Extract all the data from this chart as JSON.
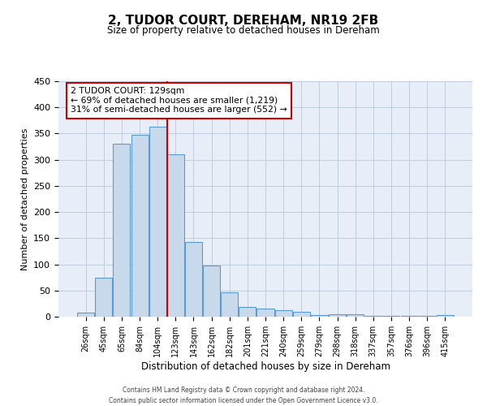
{
  "title": "2, TUDOR COURT, DEREHAM, NR19 2FB",
  "subtitle": "Size of property relative to detached houses in Dereham",
  "xlabel": "Distribution of detached houses by size in Dereham",
  "ylabel": "Number of detached properties",
  "bar_labels": [
    "26sqm",
    "45sqm",
    "65sqm",
    "84sqm",
    "104sqm",
    "123sqm",
    "143sqm",
    "162sqm",
    "182sqm",
    "201sqm",
    "221sqm",
    "240sqm",
    "259sqm",
    "279sqm",
    "298sqm",
    "318sqm",
    "337sqm",
    "357sqm",
    "376sqm",
    "396sqm",
    "415sqm"
  ],
  "bar_heights": [
    7,
    75,
    330,
    347,
    363,
    310,
    143,
    97,
    46,
    18,
    15,
    12,
    10,
    3,
    5,
    5,
    2,
    1.5,
    1.5,
    1.5,
    3
  ],
  "bar_color": "#c9d9ec",
  "bar_edge_color": "#5b9bd5",
  "bar_edge_width": 0.8,
  "reference_line_color": "#cc0000",
  "annotation_text": "2 TUDOR COURT: 129sqm\n← 69% of detached houses are smaller (1,219)\n31% of semi-detached houses are larger (552) →",
  "annotation_box_color": "#ffffff",
  "annotation_box_edge": "#cc0000",
  "ylim": [
    0,
    450
  ],
  "yticks": [
    0,
    50,
    100,
    150,
    200,
    250,
    300,
    350,
    400,
    450
  ],
  "background_color": "#ffffff",
  "axes_bg_color": "#e8eef7",
  "grid_color": "#c0ccdd",
  "footer_line1": "Contains HM Land Registry data © Crown copyright and database right 2024.",
  "footer_line2": "Contains public sector information licensed under the Open Government Licence v3.0."
}
